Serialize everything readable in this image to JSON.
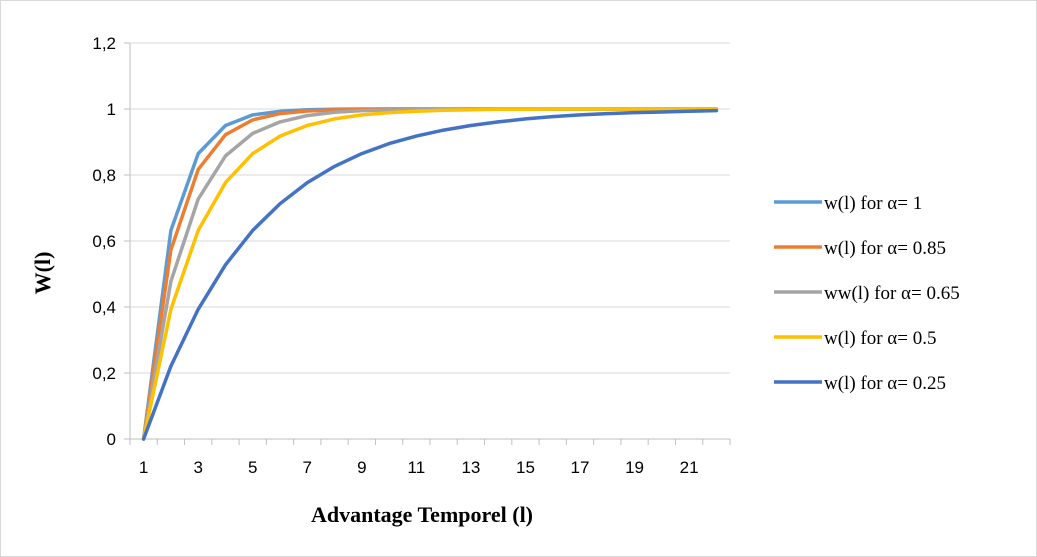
{
  "chart_data": {
    "type": "line",
    "title": "",
    "xlabel": "Advantage Temporel (l)",
    "ylabel": "W(l)",
    "xlim": [
      1,
      22
    ],
    "ylim": [
      0,
      1.2
    ],
    "y_ticks": [
      "0",
      "0,2",
      "0,4",
      "0,6",
      "0,8",
      "1",
      "1,2"
    ],
    "y_tick_values": [
      0,
      0.2,
      0.4,
      0.6,
      0.8,
      1.0,
      1.2
    ],
    "x_ticks": [
      "1",
      "3",
      "5",
      "7",
      "9",
      "11",
      "13",
      "15",
      "17",
      "19",
      "21"
    ],
    "x_tick_values": [
      1,
      3,
      5,
      7,
      9,
      11,
      13,
      15,
      17,
      19,
      21
    ],
    "x": [
      1,
      2,
      3,
      4,
      5,
      6,
      7,
      8,
      9,
      10,
      11,
      12,
      13,
      14,
      15,
      16,
      17,
      18,
      19,
      20,
      21,
      22
    ],
    "grid": "horizontal",
    "legend_position": "right",
    "series": [
      {
        "name": "w(l) for α= 1",
        "color": "#5b9bd5",
        "values": [
          0,
          0.632,
          0.865,
          0.95,
          0.982,
          0.993,
          0.998,
          0.999,
          1,
          1,
          1,
          1,
          1,
          1,
          1,
          1,
          1,
          1,
          1,
          1,
          1,
          1
        ]
      },
      {
        "name": "w(l) for α= 0.85",
        "color": "#ed7d31",
        "values": [
          0,
          0.573,
          0.817,
          0.922,
          0.967,
          0.986,
          0.994,
          0.997,
          0.999,
          1,
          1,
          1,
          1,
          1,
          1,
          1,
          1,
          1,
          1,
          1,
          1,
          1
        ]
      },
      {
        "name": "ww(l) for α= 0.65",
        "color": "#a5a5a5",
        "values": [
          0,
          0.478,
          0.727,
          0.858,
          0.926,
          0.961,
          0.98,
          0.99,
          0.995,
          0.997,
          0.998,
          0.999,
          1,
          1,
          1,
          1,
          1,
          1,
          1,
          1,
          1,
          1
        ]
      },
      {
        "name": "w(l) for α= 0.5",
        "color": "#ffc000",
        "values": [
          0,
          0.393,
          0.632,
          0.777,
          0.865,
          0.918,
          0.95,
          0.97,
          0.982,
          0.989,
          0.993,
          0.996,
          0.998,
          0.999,
          0.999,
          1,
          1,
          1,
          1,
          1,
          1,
          1
        ]
      },
      {
        "name": "w(l) for α= 0.25",
        "color": "#4472c4",
        "values": [
          0,
          0.221,
          0.393,
          0.528,
          0.632,
          0.713,
          0.777,
          0.826,
          0.865,
          0.895,
          0.918,
          0.936,
          0.95,
          0.961,
          0.97,
          0.977,
          0.982,
          0.986,
          0.989,
          0.991,
          0.993,
          0.995
        ]
      }
    ]
  }
}
